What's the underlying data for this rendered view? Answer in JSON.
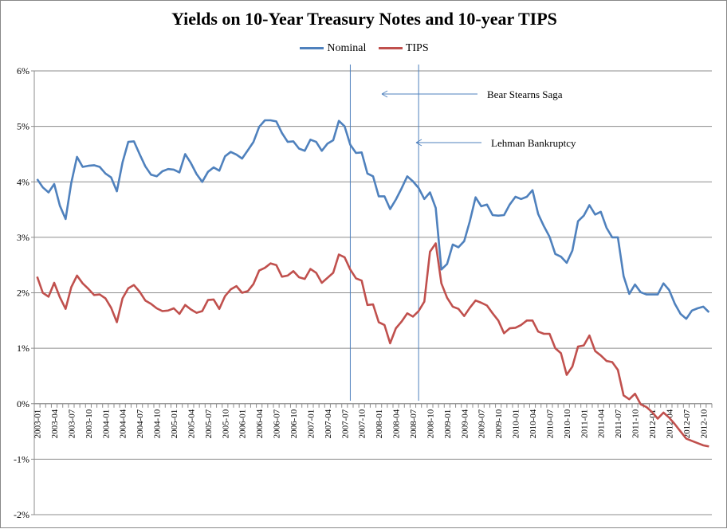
{
  "chart_data": {
    "type": "line",
    "title": "Yields on 10-Year Treasury Notes and 10-year TIPS",
    "xlabel": "",
    "ylabel": "",
    "ylim": [
      -2,
      6
    ],
    "yticks": [
      "-2%",
      "-1%",
      "0%",
      "1%",
      "2%",
      "3%",
      "4%",
      "5%",
      "6%"
    ],
    "grid": "horizontal",
    "legend_position": "top",
    "x_tick_labels": [
      "2003-01",
      "2003-04",
      "2003-07",
      "2003-10",
      "2004-01",
      "2004-04",
      "2004-07",
      "2004-10",
      "2005-01",
      "2005-04",
      "2005-07",
      "2005-10",
      "2006-01",
      "2006-04",
      "2006-07",
      "2006-10",
      "2007-01",
      "2007-04",
      "2007-07",
      "2007-10",
      "2008-01",
      "2008-04",
      "2008-07",
      "2008-10",
      "2009-01",
      "2009-04",
      "2009-07",
      "2009-10",
      "2010-01",
      "2010-04",
      "2010-07",
      "2010-10",
      "2011-01",
      "2011-04",
      "2011-07",
      "2011-10",
      "2012-01",
      "2012-04",
      "2012-07",
      "2012-10"
    ],
    "x_start": "2003-01",
    "series": [
      {
        "name": "Nominal",
        "color": "#4F81BD",
        "values": [
          4.05,
          3.9,
          3.81,
          3.96,
          3.57,
          3.33,
          3.98,
          4.45,
          4.27,
          4.29,
          4.3,
          4.27,
          4.15,
          4.08,
          3.83,
          4.35,
          4.72,
          4.73,
          4.5,
          4.28,
          4.13,
          4.1,
          4.19,
          4.23,
          4.22,
          4.17,
          4.5,
          4.34,
          4.14,
          4.0,
          4.18,
          4.26,
          4.2,
          4.46,
          4.54,
          4.49,
          4.42,
          4.57,
          4.72,
          4.99,
          5.11,
          5.11,
          5.09,
          4.88,
          4.72,
          4.73,
          4.6,
          4.56,
          4.76,
          4.72,
          4.56,
          4.69,
          4.75,
          5.1,
          5.0,
          4.67,
          4.52,
          4.53,
          4.15,
          4.1,
          3.74,
          3.74,
          3.51,
          3.68,
          3.88,
          4.1,
          4.01,
          3.89,
          3.69,
          3.81,
          3.53,
          2.42,
          2.52,
          2.87,
          2.82,
          2.93,
          3.29,
          3.72,
          3.56,
          3.59,
          3.4,
          3.39,
          3.4,
          3.59,
          3.73,
          3.69,
          3.73,
          3.85,
          3.42,
          3.2,
          3.01,
          2.7,
          2.65,
          2.54,
          2.76,
          3.29,
          3.39,
          3.58,
          3.41,
          3.46,
          3.17,
          3.0,
          3.0,
          2.3,
          1.98,
          2.15,
          2.01,
          1.97,
          1.97,
          1.97,
          2.17,
          2.05,
          1.8,
          1.62,
          1.53,
          1.68,
          1.72,
          1.75,
          1.65
        ]
      },
      {
        "name": "TIPS",
        "color": "#C0504D",
        "values": [
          2.29,
          2.0,
          1.93,
          2.18,
          1.92,
          1.71,
          2.1,
          2.31,
          2.17,
          2.07,
          1.96,
          1.97,
          1.9,
          1.73,
          1.47,
          1.9,
          2.08,
          2.14,
          2.02,
          1.86,
          1.8,
          1.72,
          1.67,
          1.68,
          1.72,
          1.62,
          1.78,
          1.7,
          1.64,
          1.67,
          1.87,
          1.88,
          1.71,
          1.94,
          2.06,
          2.12,
          2.0,
          2.03,
          2.16,
          2.4,
          2.45,
          2.53,
          2.5,
          2.29,
          2.31,
          2.39,
          2.28,
          2.25,
          2.43,
          2.36,
          2.18,
          2.27,
          2.36,
          2.69,
          2.64,
          2.42,
          2.26,
          2.22,
          1.78,
          1.79,
          1.47,
          1.42,
          1.09,
          1.36,
          1.48,
          1.63,
          1.57,
          1.67,
          1.84,
          2.74,
          2.89,
          2.17,
          1.91,
          1.75,
          1.71,
          1.58,
          1.73,
          1.86,
          1.82,
          1.77,
          1.63,
          1.5,
          1.27,
          1.36,
          1.37,
          1.42,
          1.5,
          1.5,
          1.3,
          1.26,
          1.26,
          1.0,
          0.91,
          0.52,
          0.67,
          1.03,
          1.05,
          1.23,
          0.95,
          0.87,
          0.77,
          0.75,
          0.61,
          0.15,
          0.08,
          0.18,
          -0.01,
          -0.06,
          -0.15,
          -0.27,
          -0.16,
          -0.25,
          -0.37,
          -0.5,
          -0.63,
          -0.67,
          -0.71,
          -0.75,
          -0.77
        ]
      }
    ],
    "annotations": [
      {
        "label": "Bear Stearns Saga",
        "x": "2007-08"
      },
      {
        "label": "Lehman Bankruptcy",
        "x": "2008-08"
      }
    ]
  }
}
